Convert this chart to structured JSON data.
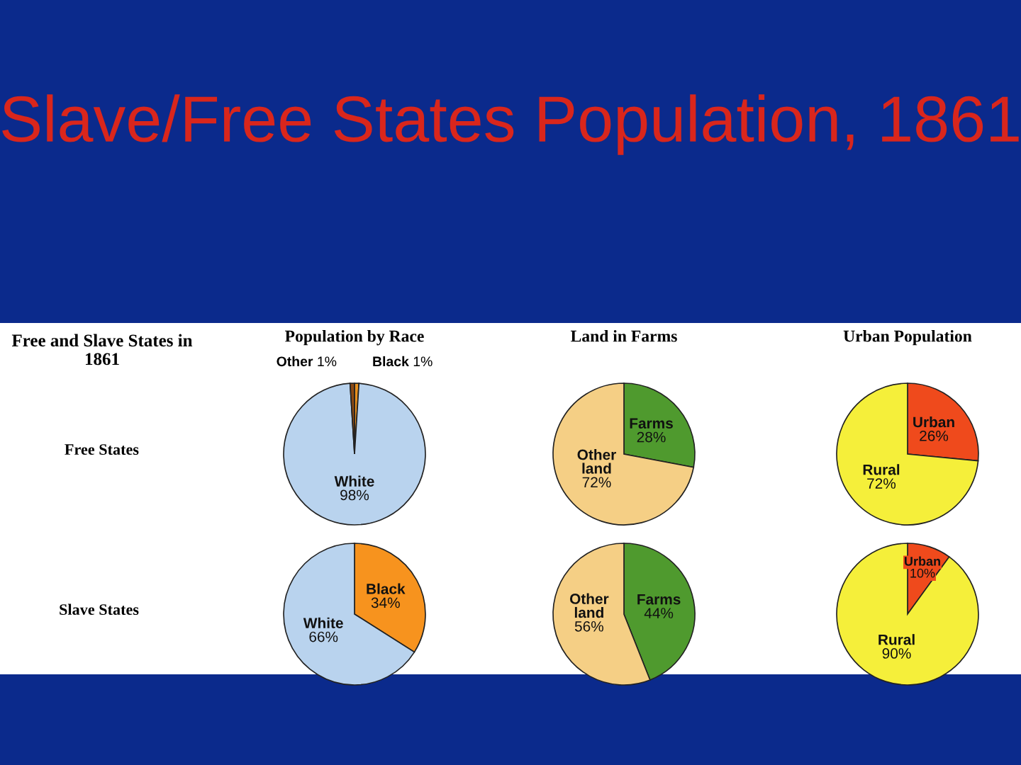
{
  "chart_data": [
    {
      "type": "pie",
      "title": "Population by Race",
      "ylabel": "Free States",
      "annotations": [
        "Slave/Free States Population, 1861",
        "Free and Slave States in 1861"
      ],
      "categories": [
        "Black",
        "White",
        "Other"
      ],
      "values": [
        1,
        98,
        1
      ],
      "value_labels": [
        "1%",
        "98%",
        "1%"
      ],
      "colors": [
        "#e8901e",
        "#b9d3ee",
        "#8b4a14"
      ]
    },
    {
      "type": "pie",
      "title": "Land in Farms",
      "categories": [
        "Farms",
        "Other land"
      ],
      "values": [
        28,
        72
      ],
      "value_labels": [
        "28%",
        "72%"
      ],
      "colors": [
        "#4f9a2e",
        "#f5cf85"
      ]
    },
    {
      "type": "pie",
      "title": "Urban Population",
      "categories": [
        "Urban",
        "Rural"
      ],
      "values": [
        26,
        72
      ],
      "value_labels": [
        "26%",
        "72%"
      ],
      "colors": [
        "#ef4a1c",
        "#f5ef3a"
      ]
    },
    {
      "type": "pie",
      "ylabel": "Slave States",
      "categories": [
        "Black",
        "White"
      ],
      "values": [
        34,
        66
      ],
      "value_labels": [
        "34%",
        "66%"
      ],
      "colors": [
        "#f7931e",
        "#b9d3ee"
      ]
    },
    {
      "type": "pie",
      "categories": [
        "Farms",
        "Other land"
      ],
      "values": [
        44,
        56
      ],
      "value_labels": [
        "44%",
        "56%"
      ],
      "colors": [
        "#4f9a2e",
        "#f5cf85"
      ]
    },
    {
      "type": "pie",
      "categories": [
        "Urban",
        "Rural"
      ],
      "values": [
        10,
        90
      ],
      "value_labels": [
        "10%",
        "90%"
      ],
      "colors": [
        "#ef4a1c",
        "#f5ef3a"
      ]
    }
  ]
}
